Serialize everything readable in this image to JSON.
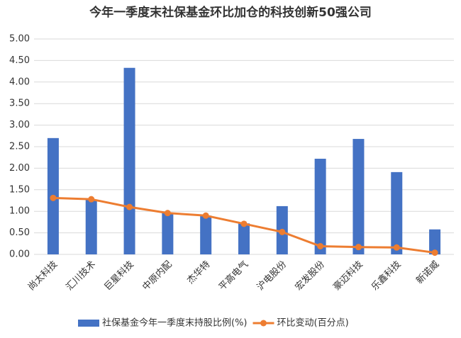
{
  "chart_data": {
    "type": "bar",
    "title": "今年一季度末社保基金环比加仓的科技创新50强公司",
    "categories": [
      "尚太科技",
      "汇川技术",
      "巨星科技",
      "中原内配",
      "杰华特",
      "平高电气",
      "沪电股份",
      "宏发股份",
      "豪迈科技",
      "乐鑫科技",
      "新诺威"
    ],
    "series": [
      {
        "name": "社保基金今年一季度末持股比例(%)",
        "type": "bar",
        "color": "#4472c4",
        "values": [
          2.7,
          1.27,
          4.33,
          0.97,
          0.9,
          0.72,
          1.12,
          2.22,
          2.68,
          1.91,
          0.58
        ]
      },
      {
        "name": "环比变动(百分点)",
        "type": "line",
        "color": "#ed7d31",
        "values": [
          1.31,
          1.28,
          1.1,
          0.96,
          0.9,
          0.71,
          0.52,
          0.19,
          0.17,
          0.16,
          0.04
        ]
      }
    ],
    "ylim": [
      0,
      5
    ],
    "yticks": [
      {
        "value": 0,
        "label": "0.00"
      },
      {
        "value": 0.5,
        "label": "0.50"
      },
      {
        "value": 1,
        "label": "1.00"
      },
      {
        "value": 1.5,
        "label": "1.50"
      },
      {
        "value": 2,
        "label": "2.00"
      },
      {
        "value": 2.5,
        "label": "2.50"
      },
      {
        "value": 3,
        "label": "3.00"
      },
      {
        "value": 3.5,
        "label": "3.50"
      },
      {
        "value": 4,
        "label": "4.00"
      },
      {
        "value": 4.5,
        "label": "4.50"
      },
      {
        "value": 5,
        "label": "5.00"
      }
    ],
    "grid": true
  }
}
